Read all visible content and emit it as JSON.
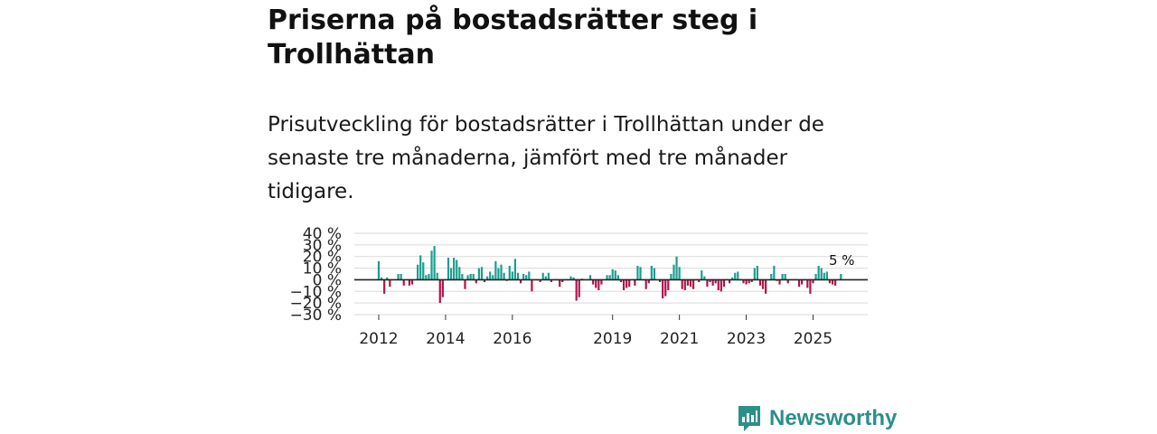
{
  "title": "Priserna på bostadsrätter steg i Trollhättan",
  "subtitle": "Prisutveckling för bostadsrätter i Trollhättan under de senaste tre månaderna, jämfört med tre månader tidigare.",
  "brand": {
    "name": "Newsworthy",
    "icon": "newsworthy-logo-icon"
  },
  "colors": {
    "positive": "#1a9e8f",
    "negative": "#b0144b",
    "grid": "#d9d9d9",
    "axis": "#222222"
  },
  "chart_data": {
    "type": "bar",
    "title": "Priserna på bostadsrätter steg i Trollhättan",
    "xlabel": "",
    "ylabel": "",
    "ylim": [
      -30,
      40
    ],
    "y_ticks": [
      40,
      30,
      20,
      10,
      0,
      -10,
      -20,
      -30
    ],
    "y_tick_labels": [
      "40 %",
      "30 %",
      "20 %",
      "10 %",
      "0 %",
      "−10 %",
      "−20 %",
      "−30 %"
    ],
    "x_ticks": [
      2012,
      2014,
      2016,
      2019,
      2021,
      2023,
      2025
    ],
    "x_tick_labels": [
      "2012",
      "2014",
      "2016",
      "2019",
      "2021",
      "2023",
      "2025"
    ],
    "start": [
      2012,
      1
    ],
    "last_label": "5 %",
    "values": [
      16,
      2,
      -12,
      2,
      -6,
      0,
      0,
      5,
      5,
      -5,
      0,
      -5,
      -4,
      0,
      13,
      21,
      15,
      4,
      5,
      25,
      29,
      6,
      -20,
      -15,
      0,
      19,
      10,
      19,
      17,
      11,
      5,
      -8,
      4,
      5,
      5,
      -3,
      10,
      11,
      -2,
      3,
      7,
      4,
      16,
      10,
      13,
      6,
      -1,
      12,
      7,
      18,
      6,
      -3,
      5,
      4,
      7,
      -10,
      0,
      0,
      -2,
      6,
      3,
      6,
      -2,
      0,
      0,
      -6,
      -2,
      0,
      0,
      3,
      2,
      -18,
      -15,
      1,
      0,
      0,
      4,
      -4,
      -7,
      -9,
      -4,
      0,
      4,
      4,
      9,
      8,
      4,
      -2,
      -9,
      -7,
      -6,
      0,
      -5,
      12,
      11,
      0,
      -8,
      -3,
      12,
      10,
      0,
      -2,
      -16,
      -14,
      -9,
      5,
      13,
      20,
      11,
      -8,
      -9,
      -5,
      -6,
      -8,
      0,
      -2,
      8,
      3,
      -6,
      -2,
      -5,
      -3,
      -9,
      -10,
      -6,
      0,
      -3,
      2,
      6,
      7,
      0,
      -3,
      -4,
      -3,
      -2,
      10,
      12,
      -5,
      -8,
      -12,
      0,
      5,
      12,
      -1,
      -4,
      5,
      5,
      -3,
      0,
      0,
      0,
      -6,
      -4,
      0,
      -7,
      -12,
      -3,
      5,
      12,
      10,
      6,
      7,
      -3,
      -4,
      -5,
      0,
      5
    ]
  }
}
